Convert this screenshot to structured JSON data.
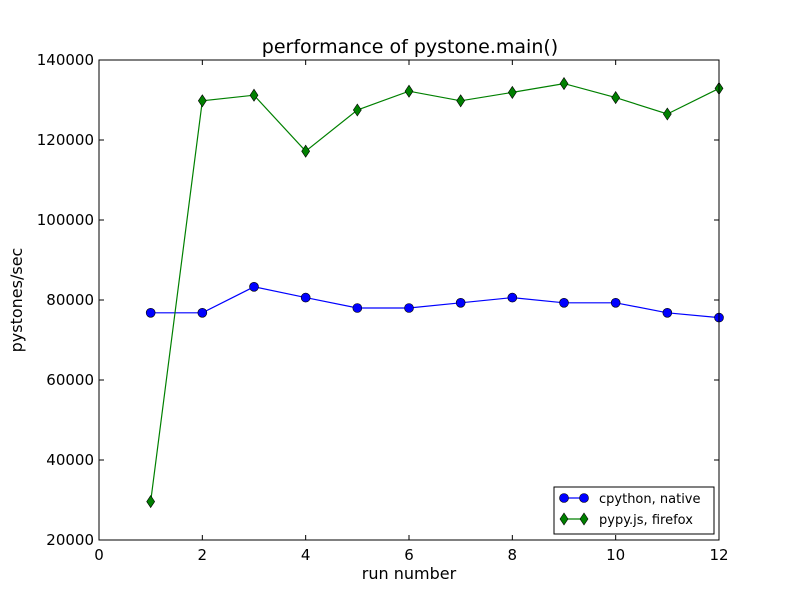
{
  "chart_data": {
    "type": "line",
    "title": "performance of pystone.main()",
    "xlabel": "run number",
    "ylabel": "pystones/sec",
    "xlim": [
      0,
      12
    ],
    "ylim": [
      20000,
      140000
    ],
    "xticks": [
      0,
      2,
      4,
      6,
      8,
      10,
      12
    ],
    "yticks": [
      20000,
      40000,
      60000,
      80000,
      100000,
      120000,
      140000
    ],
    "xtick_labels": [
      "0",
      "2",
      "4",
      "6",
      "8",
      "10",
      "12"
    ],
    "ytick_labels": [
      "20000",
      "40000",
      "60000",
      "80000",
      "100000",
      "120000",
      "140000"
    ],
    "grid": false,
    "legend_position": "lower-right",
    "x": [
      1,
      2,
      3,
      4,
      5,
      6,
      7,
      8,
      9,
      10,
      11,
      12
    ],
    "series": [
      {
        "name": "cpython, native",
        "color": "#0000ff",
        "marker": "circle",
        "values": [
          76800,
          76800,
          83300,
          80600,
          78000,
          78000,
          79300,
          80600,
          79300,
          79300,
          76800,
          75600
        ]
      },
      {
        "name": "pypy.js, firefox",
        "color": "#008000",
        "marker": "diamond",
        "values": [
          29600,
          129800,
          131200,
          117200,
          127500,
          132200,
          129800,
          131900,
          134100,
          130600,
          126500,
          132900
        ]
      }
    ]
  }
}
